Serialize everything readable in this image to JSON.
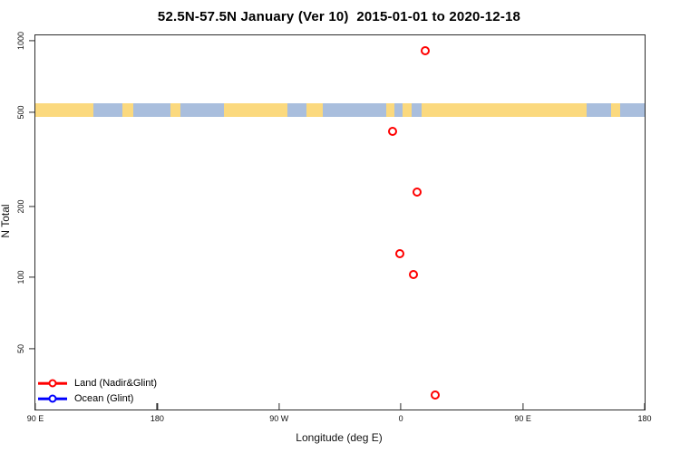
{
  "title": "52.5N-57.5N January (Ver 10)  2015-01-01 to 2020-12-18",
  "colors": {
    "land_series": "#ff0000",
    "ocean_series": "#0000ff",
    "band_land": "#fbd97e",
    "band_ocean": "#a9bedd",
    "axis": "#2b2b2b"
  },
  "chart_data": {
    "type": "scatter",
    "title": "52.5N-57.5N January (Ver 10)  2015-01-01 to 2020-12-18",
    "xlabel": "Longitude (deg E)",
    "ylabel": "N Total",
    "y_scale": "log",
    "ylim": [
      27.7,
      1054
    ],
    "x_axis_degrees_range": [
      90,
      540
    ],
    "x_ticks": [
      {
        "deg": 90,
        "label": "90 E"
      },
      {
        "deg": 180,
        "label": "180"
      },
      {
        "deg": 270,
        "label": "90 W"
      },
      {
        "deg": 360,
        "label": "0"
      },
      {
        "deg": 450,
        "label": "90 E"
      },
      {
        "deg": 540,
        "label": "180"
      }
    ],
    "y_ticks": [
      {
        "value": 1000,
        "label": "1000"
      },
      {
        "value": 500,
        "label": "500"
      },
      {
        "value": 200,
        "label": "200"
      },
      {
        "value": 100,
        "label": "100"
      },
      {
        "value": 50,
        "label": "50"
      }
    ],
    "grid": false,
    "legend_position": "bottom-left-inside",
    "series": [
      {
        "name": "Land (Nadir&Glint)",
        "color": "#ff0000",
        "marker": "open-circle",
        "points": [
          {
            "lon_axis_deg": 378,
            "lon_label": "18E",
            "n": 910
          },
          {
            "lon_axis_deg": 354,
            "lon_label": "6W",
            "n": 414
          },
          {
            "lon_axis_deg": 372,
            "lon_label": "12E",
            "n": 230
          },
          {
            "lon_axis_deg": 359,
            "lon_label": "1W",
            "n": 126
          },
          {
            "lon_axis_deg": 369,
            "lon_label": "9E",
            "n": 103
          },
          {
            "lon_axis_deg": 385,
            "lon_label": "25E",
            "n": 32
          }
        ]
      },
      {
        "name": "Ocean (Glint)",
        "color": "#0000ff",
        "marker": "open-circle",
        "points": []
      }
    ],
    "map_band": {
      "description": "land/ocean strip of latitude zone drawn across plot at N=500",
      "value_top": 544,
      "value_bottom": 477,
      "segments": [
        {
          "from": 90,
          "to": 133,
          "type": "land"
        },
        {
          "from": 133,
          "to": 154,
          "type": "ocean"
        },
        {
          "from": 154,
          "to": 162,
          "type": "land"
        },
        {
          "from": 162,
          "to": 190,
          "type": "ocean"
        },
        {
          "from": 190,
          "to": 197,
          "type": "land"
        },
        {
          "from": 197,
          "to": 229,
          "type": "ocean"
        },
        {
          "from": 229,
          "to": 276,
          "type": "land"
        },
        {
          "from": 276,
          "to": 290,
          "type": "ocean"
        },
        {
          "from": 290,
          "to": 302,
          "type": "land"
        },
        {
          "from": 302,
          "to": 349,
          "type": "ocean"
        },
        {
          "from": 349,
          "to": 355,
          "type": "land"
        },
        {
          "from": 355,
          "to": 361,
          "type": "ocean"
        },
        {
          "from": 361,
          "to": 368,
          "type": "land"
        },
        {
          "from": 368,
          "to": 375,
          "type": "ocean"
        },
        {
          "from": 375,
          "to": 497,
          "type": "land"
        },
        {
          "from": 497,
          "to": 515,
          "type": "ocean"
        },
        {
          "from": 515,
          "to": 522,
          "type": "land"
        },
        {
          "from": 522,
          "to": 540,
          "type": "ocean"
        }
      ]
    }
  },
  "legend": {
    "entries": [
      {
        "label": "Land (Nadir&Glint)",
        "color": "#ff0000"
      },
      {
        "label": "Ocean (Glint)",
        "color": "#0000ff"
      }
    ]
  }
}
